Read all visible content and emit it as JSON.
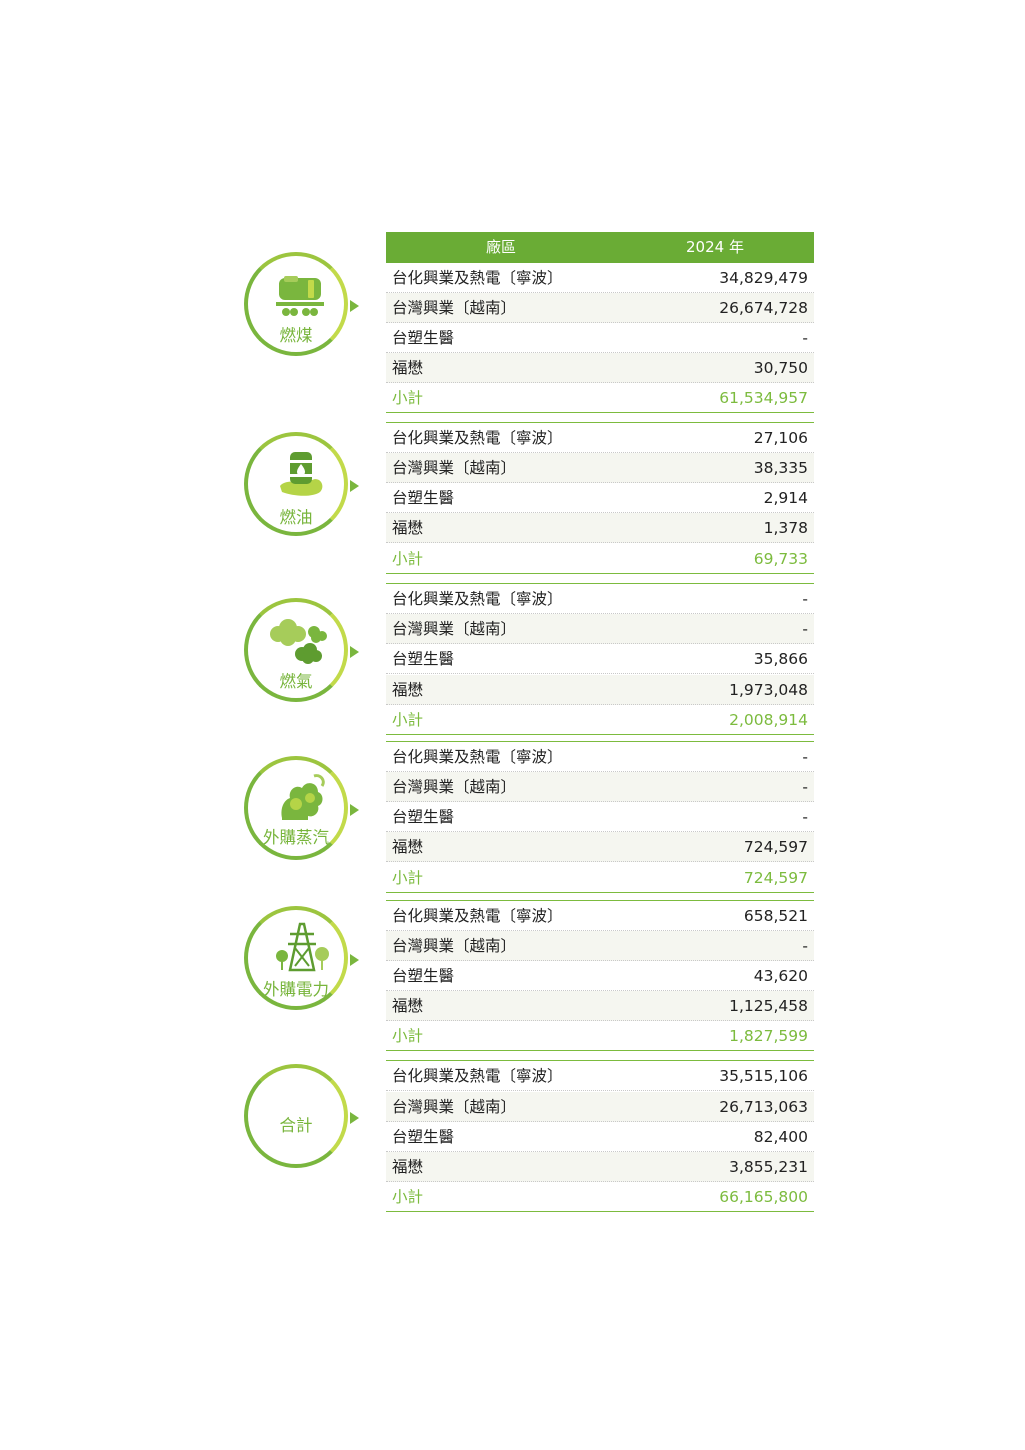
{
  "header": {
    "col_plant": "廠區",
    "col_year": "2024 年"
  },
  "subtotal_label": "小計",
  "groups": [
    {
      "label": "燃煤",
      "icon": "coal-train-icon",
      "rows": [
        {
          "name": "台化興業及熱電〔寧波〕",
          "value": "34,829,479"
        },
        {
          "name": "台灣興業〔越南〕",
          "value": "26,674,728"
        },
        {
          "name": "台塑生醫",
          "value": "-"
        },
        {
          "name": "福懋",
          "value": "30,750"
        }
      ],
      "subtotal": "61,534,957"
    },
    {
      "label": "燃油",
      "icon": "oil-barrel-icon",
      "rows": [
        {
          "name": "台化興業及熱電〔寧波〕",
          "value": "27,106"
        },
        {
          "name": "台灣興業〔越南〕",
          "value": "38,335"
        },
        {
          "name": "台塑生醫",
          "value": "2,914"
        },
        {
          "name": "福懋",
          "value": "1,378"
        }
      ],
      "subtotal": "69,733"
    },
    {
      "label": "燃氣",
      "icon": "gas-cloud-icon",
      "rows": [
        {
          "name": "台化興業及熱電〔寧波〕",
          "value": "-"
        },
        {
          "name": "台灣興業〔越南〕",
          "value": "-"
        },
        {
          "name": "台塑生醫",
          "value": "35,866"
        },
        {
          "name": "福懋",
          "value": "1,973,048"
        }
      ],
      "subtotal": "2,008,914"
    },
    {
      "label": "外購蒸汽",
      "icon": "steam-icon",
      "rows": [
        {
          "name": "台化興業及熱電〔寧波〕",
          "value": "-"
        },
        {
          "name": "台灣興業〔越南〕",
          "value": "-"
        },
        {
          "name": "台塑生醫",
          "value": "-"
        },
        {
          "name": "福懋",
          "value": "724,597"
        }
      ],
      "subtotal": "724,597"
    },
    {
      "label": "外購電力",
      "icon": "power-tower-icon",
      "rows": [
        {
          "name": "台化興業及熱電〔寧波〕",
          "value": "658,521"
        },
        {
          "name": "台灣興業〔越南〕",
          "value": "-"
        },
        {
          "name": "台塑生醫",
          "value": "43,620"
        },
        {
          "name": "福懋",
          "value": "1,125,458"
        }
      ],
      "subtotal": "1,827,599"
    },
    {
      "label": "合計",
      "icon": "",
      "rows": [
        {
          "name": "台化興業及熱電〔寧波〕",
          "value": "35,515,106"
        },
        {
          "name": "台灣興業〔越南〕",
          "value": "26,713,063"
        },
        {
          "name": "台塑生醫",
          "value": "82,400"
        },
        {
          "name": "福懋",
          "value": "3,855,231"
        }
      ],
      "subtotal": "66,165,800"
    }
  ]
}
